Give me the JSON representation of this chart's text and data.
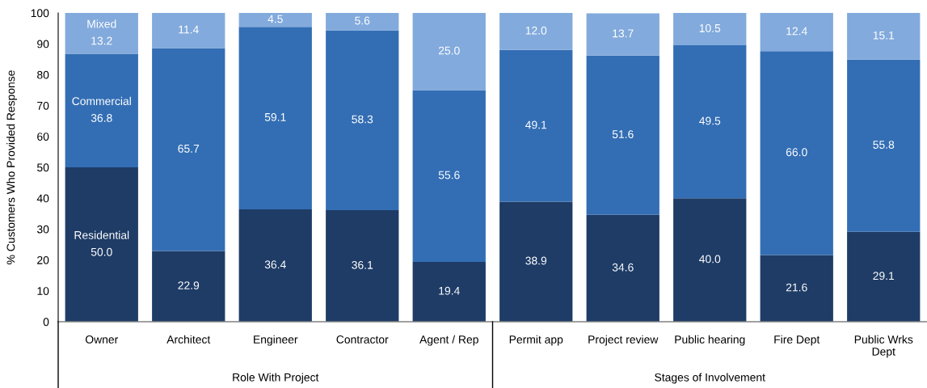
{
  "chart_data": {
    "type": "bar",
    "stacked": true,
    "ylabel": "% Customers Who Provided Response",
    "categories": [
      "Owner",
      "Architect",
      "Engineer",
      "Contractor",
      "Agent / Rep",
      "Permit app",
      "Project review",
      "Public hearing",
      "Fire Dept",
      "Public Wrks Dept"
    ],
    "series": [
      {
        "name": "Residential",
        "color": "#1e3c66",
        "values": [
          50.0,
          22.9,
          36.4,
          36.1,
          19.4,
          38.9,
          34.6,
          40.0,
          21.6,
          29.1
        ],
        "value_labels": [
          "50.0",
          "22.9",
          "36.4",
          "36.1",
          "19.4",
          "38.9",
          "34.6",
          "40.0",
          "21.6",
          "29.1"
        ]
      },
      {
        "name": "Commercial",
        "color": "#336eb4",
        "values": [
          36.8,
          65.7,
          59.1,
          58.3,
          55.6,
          49.1,
          51.6,
          49.5,
          66.0,
          55.8
        ],
        "value_labels": [
          "36.8",
          "65.7",
          "59.1",
          "58.3",
          "55.6",
          "49.1",
          "51.6",
          "49.5",
          "66.0",
          "55.8"
        ]
      },
      {
        "name": "Mixed",
        "color": "#82aadc",
        "values": [
          13.2,
          11.4,
          4.5,
          5.6,
          25.0,
          12.0,
          13.7,
          10.5,
          12.4,
          15.1
        ],
        "value_labels": [
          "13.2",
          "11.4",
          "4.5",
          "5.6",
          "25.0",
          "12.0",
          "13.7",
          "10.5",
          "12.4",
          "15.1"
        ]
      }
    ],
    "ylim": [
      0,
      100
    ],
    "yticks": [
      0,
      10,
      20,
      30,
      40,
      50,
      60,
      70,
      80,
      90,
      100
    ],
    "annotations": [
      "Role With Project",
      "Stages of Involvement"
    ]
  }
}
